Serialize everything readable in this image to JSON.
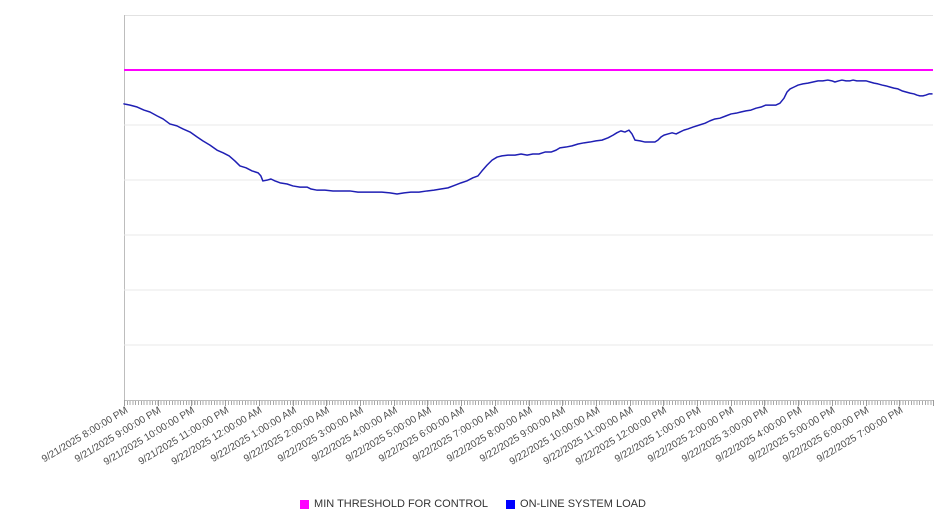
{
  "page": {
    "background": "#ffffff"
  },
  "legend": {
    "items": [
      {
        "label": "MIN THRESHOLD FOR CONTROL",
        "color": "#ff00ff"
      },
      {
        "label": "ON-LINE SYSTEM LOAD",
        "color": "#0000ff"
      }
    ]
  },
  "chart_data": {
    "type": "line",
    "title": "",
    "xlabel": "",
    "ylabel": "",
    "legend_position": "bottom-center",
    "grid": "horizontal-only",
    "x_axis": {
      "hours_span": 24,
      "minor_tick_minutes": 5,
      "tick_labels": [
        "9/21/2025 8:00:00 PM",
        "9/21/2025 9:00:00 PM",
        "9/21/2025 10:00:00 PM",
        "9/21/2025 11:00:00 PM",
        "9/22/2025 12:00:00 AM",
        "9/22/2025 1:00:00 AM",
        "9/22/2025 2:00:00 AM",
        "9/22/2025 3:00:00 AM",
        "9/22/2025 4:00:00 AM",
        "9/22/2025 5:00:00 AM",
        "9/22/2025 6:00:00 AM",
        "9/22/2025 7:00:00 AM",
        "9/22/2025 8:00:00 AM",
        "9/22/2025 9:00:00 AM",
        "9/22/2025 10:00:00 AM",
        "9/22/2025 11:00:00 AM",
        "9/22/2025 12:00:00 PM",
        "9/22/2025 1:00:00 PM",
        "9/22/2025 2:00:00 PM",
        "9/22/2025 3:00:00 PM",
        "9/22/2025 4:00:00 PM",
        "9/22/2025 5:00:00 PM",
        "9/22/2025 6:00:00 PM",
        "9/22/2025 7:00:00 PM"
      ]
    },
    "y_axis": {
      "labels_visible": false,
      "gridline_divisions": 7,
      "value_range": [
        0,
        100
      ],
      "range_note": "no y-axis tick labels shown; values normalized 0-100 of plot height"
    },
    "threshold": {
      "name": "MIN THRESHOLD FOR CONTROL",
      "color": "#ff00ff",
      "value": 85.7
    },
    "series": [
      {
        "name": "ON-LINE SYSTEM LOAD",
        "color": "#1f1fb4",
        "points": [
          [
            0,
            76.9
          ],
          [
            0.18,
            76.6
          ],
          [
            0.39,
            76.1
          ],
          [
            0.59,
            75.3
          ],
          [
            0.77,
            74.8
          ],
          [
            0.98,
            73.8
          ],
          [
            1.16,
            73
          ],
          [
            1.36,
            71.7
          ],
          [
            1.57,
            71.2
          ],
          [
            1.75,
            70.4
          ],
          [
            1.96,
            69.6
          ],
          [
            2.17,
            68.3
          ],
          [
            2.34,
            67.3
          ],
          [
            2.55,
            66.2
          ],
          [
            2.76,
            64.9
          ],
          [
            2.94,
            64.2
          ],
          [
            3.12,
            63.4
          ],
          [
            3.29,
            62.1
          ],
          [
            3.44,
            60.8
          ],
          [
            3.62,
            60.3
          ],
          [
            3.8,
            59.5
          ],
          [
            3.98,
            59
          ],
          [
            4.06,
            58.2
          ],
          [
            4.12,
            56.9
          ],
          [
            4.24,
            57.1
          ],
          [
            4.36,
            57.4
          ],
          [
            4.48,
            56.9
          ],
          [
            4.63,
            56.4
          ],
          [
            4.84,
            56.1
          ],
          [
            5.01,
            55.6
          ],
          [
            5.22,
            55.3
          ],
          [
            5.43,
            55.3
          ],
          [
            5.55,
            54.8
          ],
          [
            5.73,
            54.5
          ],
          [
            5.96,
            54.5
          ],
          [
            6.2,
            54.3
          ],
          [
            6.44,
            54.3
          ],
          [
            6.7,
            54.3
          ],
          [
            6.94,
            54
          ],
          [
            7.18,
            54
          ],
          [
            7.42,
            54
          ],
          [
            7.65,
            54
          ],
          [
            7.89,
            53.8
          ],
          [
            8.1,
            53.5
          ],
          [
            8.31,
            53.8
          ],
          [
            8.51,
            54
          ],
          [
            8.75,
            54
          ],
          [
            8.99,
            54.3
          ],
          [
            9.2,
            54.5
          ],
          [
            9.4,
            54.8
          ],
          [
            9.61,
            55.1
          ],
          [
            9.82,
            55.8
          ],
          [
            10,
            56.4
          ],
          [
            10.17,
            56.9
          ],
          [
            10.35,
            57.7
          ],
          [
            10.5,
            58.2
          ],
          [
            10.62,
            59.5
          ],
          [
            10.77,
            61
          ],
          [
            10.92,
            62.3
          ],
          [
            11.07,
            63.1
          ],
          [
            11.21,
            63.4
          ],
          [
            11.39,
            63.6
          ],
          [
            11.6,
            63.6
          ],
          [
            11.78,
            63.9
          ],
          [
            11.96,
            63.6
          ],
          [
            12.13,
            63.9
          ],
          [
            12.31,
            63.9
          ],
          [
            12.49,
            64.4
          ],
          [
            12.67,
            64.4
          ],
          [
            12.82,
            64.9
          ],
          [
            12.93,
            65.5
          ],
          [
            13.11,
            65.7
          ],
          [
            13.29,
            66
          ],
          [
            13.47,
            66.5
          ],
          [
            13.65,
            66.8
          ],
          [
            13.82,
            67
          ],
          [
            14,
            67.3
          ],
          [
            14.18,
            67.5
          ],
          [
            14.36,
            68.1
          ],
          [
            14.51,
            68.8
          ],
          [
            14.62,
            69.4
          ],
          [
            14.74,
            69.9
          ],
          [
            14.86,
            69.6
          ],
          [
            14.98,
            70.1
          ],
          [
            15.07,
            69.1
          ],
          [
            15.16,
            67.5
          ],
          [
            15.31,
            67.3
          ],
          [
            15.46,
            67
          ],
          [
            15.61,
            67
          ],
          [
            15.75,
            67
          ],
          [
            15.84,
            67.5
          ],
          [
            15.93,
            68.3
          ],
          [
            16.02,
            68.8
          ],
          [
            16.14,
            69.1
          ],
          [
            16.26,
            69.4
          ],
          [
            16.38,
            69.1
          ],
          [
            16.49,
            69.6
          ],
          [
            16.61,
            70.1
          ],
          [
            16.73,
            70.4
          ],
          [
            16.88,
            70.9
          ],
          [
            17.06,
            71.4
          ],
          [
            17.24,
            71.9
          ],
          [
            17.38,
            72.5
          ],
          [
            17.53,
            73
          ],
          [
            17.68,
            73.2
          ],
          [
            17.86,
            73.8
          ],
          [
            18.01,
            74.3
          ],
          [
            18.16,
            74.5
          ],
          [
            18.3,
            74.8
          ],
          [
            18.45,
            75.1
          ],
          [
            18.6,
            75.3
          ],
          [
            18.75,
            75.8
          ],
          [
            18.9,
            76.1
          ],
          [
            19.04,
            76.6
          ],
          [
            19.19,
            76.6
          ],
          [
            19.34,
            76.6
          ],
          [
            19.46,
            77.1
          ],
          [
            19.58,
            78.4
          ],
          [
            19.67,
            80
          ],
          [
            19.76,
            80.8
          ],
          [
            19.88,
            81.3
          ],
          [
            20,
            81.8
          ],
          [
            20.14,
            82.1
          ],
          [
            20.29,
            82.3
          ],
          [
            20.44,
            82.6
          ],
          [
            20.59,
            82.9
          ],
          [
            20.73,
            82.9
          ],
          [
            20.88,
            83.1
          ],
          [
            21,
            82.9
          ],
          [
            21.09,
            82.6
          ],
          [
            21.21,
            82.9
          ],
          [
            21.3,
            83.1
          ],
          [
            21.42,
            82.9
          ],
          [
            21.54,
            82.9
          ],
          [
            21.63,
            83.1
          ],
          [
            21.74,
            82.9
          ],
          [
            21.89,
            82.9
          ],
          [
            22.01,
            82.9
          ],
          [
            22.13,
            82.6
          ],
          [
            22.25,
            82.3
          ],
          [
            22.37,
            82.1
          ],
          [
            22.49,
            81.8
          ],
          [
            22.6,
            81.6
          ],
          [
            22.72,
            81.3
          ],
          [
            22.84,
            81
          ],
          [
            22.96,
            80.8
          ],
          [
            23.08,
            80.3
          ],
          [
            23.2,
            80
          ],
          [
            23.32,
            79.7
          ],
          [
            23.44,
            79.5
          ],
          [
            23.52,
            79.2
          ],
          [
            23.61,
            79
          ],
          [
            23.7,
            79
          ],
          [
            23.79,
            79.2
          ],
          [
            23.88,
            79.5
          ],
          [
            23.97,
            79.5
          ]
        ]
      }
    ]
  }
}
